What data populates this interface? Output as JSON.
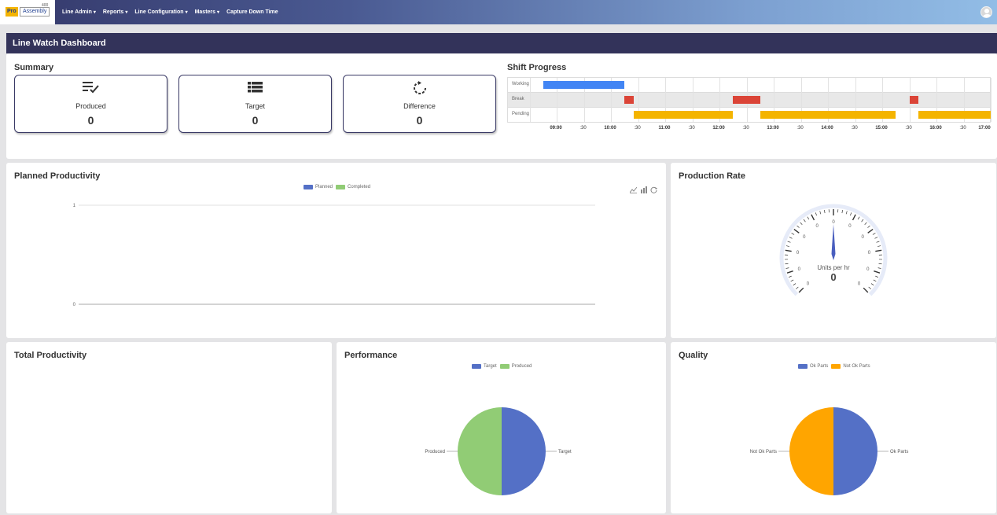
{
  "nav": {
    "logo_pro": "Pro",
    "logo_assembly": "Assembly",
    "logo_sup": "400",
    "menu": [
      {
        "label": "Line Admin",
        "caret": "▾"
      },
      {
        "label": "Reports",
        "caret": "▾"
      },
      {
        "label": "Line Configuration",
        "caret": "▾"
      },
      {
        "label": "Masters",
        "caret": "▾"
      },
      {
        "label": "Capture Down Time",
        "caret": ""
      }
    ],
    "avatar_icon": "user-avatar-icon"
  },
  "page_title": "Line Watch Dashboard",
  "summary": {
    "title": "Summary",
    "cards": [
      {
        "label": "Produced",
        "value": "0",
        "icon": "checklist-icon"
      },
      {
        "label": "Target",
        "value": "0",
        "icon": "list-icon"
      },
      {
        "label": "Difference",
        "value": "0",
        "icon": "refresh-dashed-icon"
      }
    ]
  },
  "shift_progress": {
    "title": "Shift Progress",
    "rows": [
      "Working",
      "Break",
      "Pending"
    ],
    "ticks": [
      "09:00",
      ":30",
      "10:00",
      ":30",
      "11:00",
      ":30",
      "12:00",
      ":30",
      "13:00",
      ":30",
      "14:00",
      ":30",
      "15:00",
      ":30",
      "16:00",
      ":30",
      "17:00"
    ],
    "colors": {
      "working": "#4285f4",
      "break": "#db4437",
      "pending": "#f4b400"
    }
  },
  "planned_productivity": {
    "title": "Planned Productivity",
    "legend": [
      {
        "name": "Planned",
        "color": "#5470c6"
      },
      {
        "name": "Completed",
        "color": "#91cc75"
      }
    ],
    "y_ticks": [
      "1",
      "0"
    ],
    "toolbar": [
      "line-chart-icon",
      "bar-chart-icon",
      "restore-icon"
    ]
  },
  "production_rate": {
    "title": "Production Rate",
    "gauge_label": "Units per hr",
    "gauge_value": "0",
    "gauge_ticks": [
      "0",
      "0",
      "0",
      "0",
      "0",
      "0",
      "0",
      "0",
      "0",
      "0",
      "0"
    ]
  },
  "total_productivity": {
    "title": "Total Productivity"
  },
  "performance": {
    "title": "Performance",
    "legend": [
      {
        "name": "Target",
        "color": "#5470c6"
      },
      {
        "name": "Produced",
        "color": "#91cc75"
      }
    ],
    "label_left": "Produced",
    "label_right": "Target"
  },
  "quality": {
    "title": "Quality",
    "legend": [
      {
        "name": "Ok Parts",
        "color": "#5470c6"
      },
      {
        "name": "Not Ok Parts",
        "color": "#ffa500"
      }
    ],
    "label_left": "Not Ok Parts",
    "label_right": "Ok Parts"
  },
  "chart_data": [
    {
      "type": "bar",
      "title": "Shift Progress",
      "categories": [
        "Working",
        "Break",
        "Pending"
      ],
      "x_range": [
        "09:00",
        "17:00"
      ],
      "segments": [
        {
          "row": "Working",
          "start": "08:45",
          "end": "10:15"
        },
        {
          "row": "Break",
          "start": "10:15",
          "end": "10:25"
        },
        {
          "row": "Break",
          "start": "12:15",
          "end": "12:45"
        },
        {
          "row": "Break",
          "start": "15:30",
          "end": "15:40"
        },
        {
          "row": "Pending",
          "start": "10:25",
          "end": "12:15"
        },
        {
          "row": "Pending",
          "start": "12:45",
          "end": "15:15"
        },
        {
          "row": "Pending",
          "start": "15:40",
          "end": "17:00"
        }
      ]
    },
    {
      "type": "line",
      "title": "Planned Productivity",
      "series": [
        {
          "name": "Planned",
          "values": []
        },
        {
          "name": "Completed",
          "values": []
        }
      ],
      "ylim": [
        0,
        1
      ]
    },
    {
      "type": "pie",
      "title": "Performance",
      "categories": [
        "Target",
        "Produced"
      ],
      "values": [
        50,
        50
      ]
    },
    {
      "type": "pie",
      "title": "Quality",
      "categories": [
        "Ok Parts",
        "Not Ok Parts"
      ],
      "values": [
        50,
        50
      ]
    }
  ]
}
